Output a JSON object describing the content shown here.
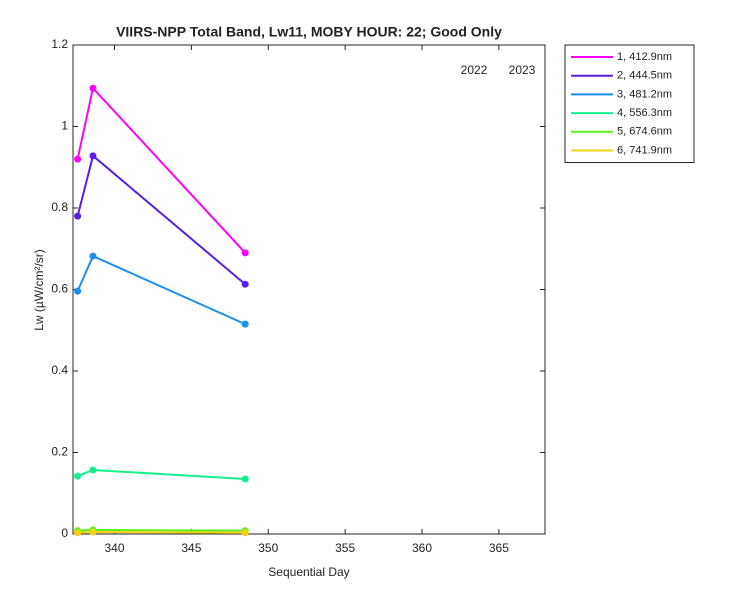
{
  "chart_data": {
    "type": "line",
    "title": "VIIRS-NPP Total Band,  Lw11, MOBY HOUR: 22;  Good Only",
    "x_label": "Sequential Day",
    "y_label": "Lw (µW/cm²/sr)",
    "annotations": [
      "2022",
      "2023"
    ],
    "x": [
      337.6,
      338.6,
      348.5
    ],
    "series": [
      {
        "name": "1, 412.9nm",
        "color": "#ff00ff",
        "values": [
          0.92,
          1.094,
          0.69
        ]
      },
      {
        "name": "2, 444.5nm",
        "color": "#5a1ee6",
        "values": [
          0.78,
          0.928,
          0.613
        ]
      },
      {
        "name": "3, 481.2nm",
        "color": "#1a8ff0",
        "values": [
          0.596,
          0.682,
          0.515
        ]
      },
      {
        "name": "4, 556.3nm",
        "color": "#14f08c",
        "values": [
          0.142,
          0.157,
          0.135
        ]
      },
      {
        "name": "5, 674.6nm",
        "color": "#5af01e",
        "values": [
          0.008,
          0.01,
          0.008
        ]
      },
      {
        "name": "6, 741.9nm",
        "color": "#f5d214",
        "values": [
          0.003,
          0.005,
          0.003
        ]
      }
    ],
    "xlim": [
      337.3,
      368
    ],
    "xticks": [
      340,
      345,
      350,
      355,
      360,
      365
    ],
    "ylim": [
      0,
      1.2
    ],
    "yticks": [
      0,
      0.2,
      0.4,
      0.6,
      0.8,
      1,
      1.2
    ],
    "grid": false,
    "legend": "outside-right"
  }
}
